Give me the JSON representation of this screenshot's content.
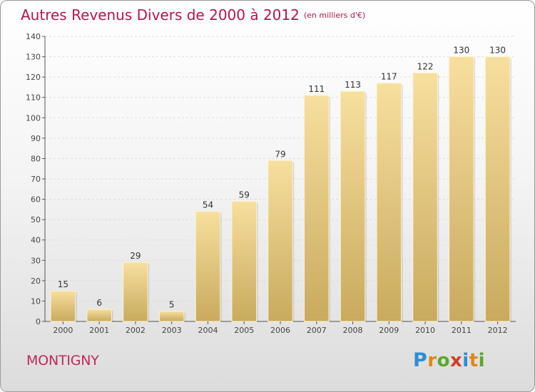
{
  "title": "Autres Revenus Divers de 2000 à 2012",
  "subtitle": "(en milliers d'€)",
  "commune": "MONTIGNY",
  "logo": {
    "letters": [
      "P",
      "r",
      "o",
      "x",
      "i",
      "t",
      "i"
    ],
    "colors": [
      "#2a8fd6",
      "#e0871a",
      "#5aa82a",
      "#d63a2a",
      "#2a8fd6",
      "#e0871a",
      "#5aa82a"
    ]
  },
  "colors": {
    "title": "#b5144f",
    "bar_light": "#f7df9e",
    "bar_dark": "#c9aa5e"
  },
  "chart_data": {
    "type": "bar",
    "categories": [
      "2000",
      "2001",
      "2002",
      "2003",
      "2004",
      "2005",
      "2006",
      "2007",
      "2008",
      "2009",
      "2010",
      "2011",
      "2012"
    ],
    "values": [
      15,
      6,
      29,
      5,
      54,
      59,
      79,
      111,
      113,
      117,
      122,
      130,
      130
    ],
    "ylim": [
      0,
      140
    ],
    "yticks": [
      0,
      10,
      20,
      30,
      40,
      50,
      60,
      70,
      80,
      90,
      100,
      110,
      120,
      130,
      140
    ],
    "grid": true,
    "legend": "none"
  }
}
